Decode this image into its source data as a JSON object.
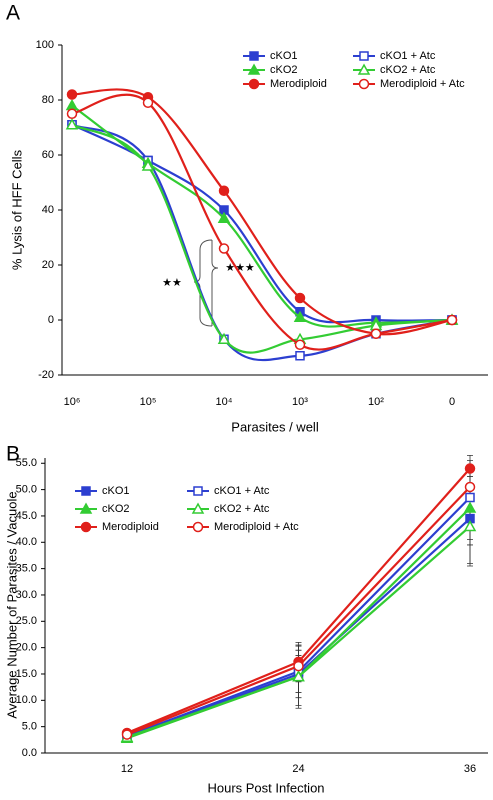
{
  "chart_data": [
    {
      "type": "line",
      "panel_label": "A",
      "x_label": "Parasites / well",
      "y_label": "% Lysis of HFF Cells",
      "categories": [
        "10⁶",
        "10⁵",
        "10⁴",
        "10³",
        "10²",
        "0"
      ],
      "ylim": [
        -20,
        100
      ],
      "yticks": [
        -20,
        0,
        20,
        40,
        60,
        80,
        100
      ],
      "grid": false,
      "smooth": true,
      "legend": "top-right",
      "annotations": [
        "★★",
        "★★★"
      ],
      "series": [
        {
          "name": "cKO1",
          "color": "#2c3fd0",
          "marker": "square",
          "filled": true,
          "values": [
            71,
            58,
            40,
            3,
            0,
            0
          ]
        },
        {
          "name": "cKO1 + Atc",
          "color": "#2c3fd0",
          "marker": "square",
          "filled": false,
          "values": [
            71,
            58,
            -7,
            -13,
            -5,
            0
          ]
        },
        {
          "name": "cKO2",
          "color": "#33cc33",
          "marker": "triangle",
          "filled": true,
          "values": [
            78,
            57,
            37,
            1,
            -1,
            0
          ]
        },
        {
          "name": "cKO2 + Atc",
          "color": "#33cc33",
          "marker": "triangle",
          "filled": false,
          "values": [
            71,
            56,
            -7,
            -7,
            -2,
            0
          ]
        },
        {
          "name": "Merodiploid",
          "color": "#e0201b",
          "marker": "circle",
          "filled": true,
          "values": [
            82,
            81,
            47,
            8,
            -5,
            0
          ]
        },
        {
          "name": "Merodiploid + Atc",
          "color": "#e0201b",
          "marker": "circle",
          "filled": false,
          "values": [
            75,
            79,
            26,
            -9,
            -5,
            0
          ]
        }
      ]
    },
    {
      "type": "line",
      "panel_label": "B",
      "x_label": "Hours Post Infection",
      "y_label": "Average Number of Parasites / Vacuole",
      "categories": [
        "12",
        "24",
        "36"
      ],
      "ylim": [
        0,
        56
      ],
      "yticks": [
        {
          "value": 0,
          "label": "0.0"
        },
        {
          "value": 5,
          "label": "5.0"
        },
        {
          "value": 10,
          "label": "10.0"
        },
        {
          "value": 15,
          "label": "15.0"
        },
        {
          "value": 20,
          "label": "20.0"
        },
        {
          "value": 25,
          "label": "25.0"
        },
        {
          "value": 30,
          "label": "30.0"
        },
        {
          "value": 35,
          "label": "35.0"
        },
        {
          "value": 40,
          "label": "40.0"
        },
        {
          "value": 45,
          "label": "45.0"
        },
        {
          "value": 50,
          "label": "50.0"
        },
        {
          "value": 55,
          "label": "55.0"
        }
      ],
      "grid": false,
      "smooth": false,
      "legend": "top-left",
      "series": [
        {
          "name": "cKO1",
          "color": "#2c3fd0",
          "marker": "square",
          "filled": true,
          "values": [
            3.0,
            15.0,
            44.5
          ],
          "errors": [
            0.5,
            6,
            9
          ]
        },
        {
          "name": "cKO1 + Atc",
          "color": "#2c3fd0",
          "marker": "square",
          "filled": false,
          "values": [
            3.2,
            15.5,
            48.5
          ],
          "errors": [
            0.5,
            4,
            8
          ]
        },
        {
          "name": "cKO2",
          "color": "#33cc33",
          "marker": "triangle",
          "filled": true,
          "values": [
            2.8,
            14.5,
            46.5
          ],
          "errors": [
            0.5,
            4,
            7
          ]
        },
        {
          "name": "cKO2 + Atc",
          "color": "#33cc33",
          "marker": "triangle",
          "filled": false,
          "values": [
            3.0,
            14.5,
            43.0
          ],
          "errors": [
            0.5,
            6,
            7
          ]
        },
        {
          "name": "Merodiploid",
          "color": "#e0201b",
          "marker": "circle",
          "filled": true,
          "values": [
            3.8,
            17.3,
            54.0
          ],
          "errors": [
            0.5,
            3,
            1.5
          ]
        },
        {
          "name": "Merodiploid + Atc",
          "color": "#e0201b",
          "marker": "circle",
          "filled": false,
          "values": [
            3.5,
            16.5,
            50.5
          ],
          "errors": [
            0.5,
            3,
            4
          ]
        }
      ]
    }
  ]
}
